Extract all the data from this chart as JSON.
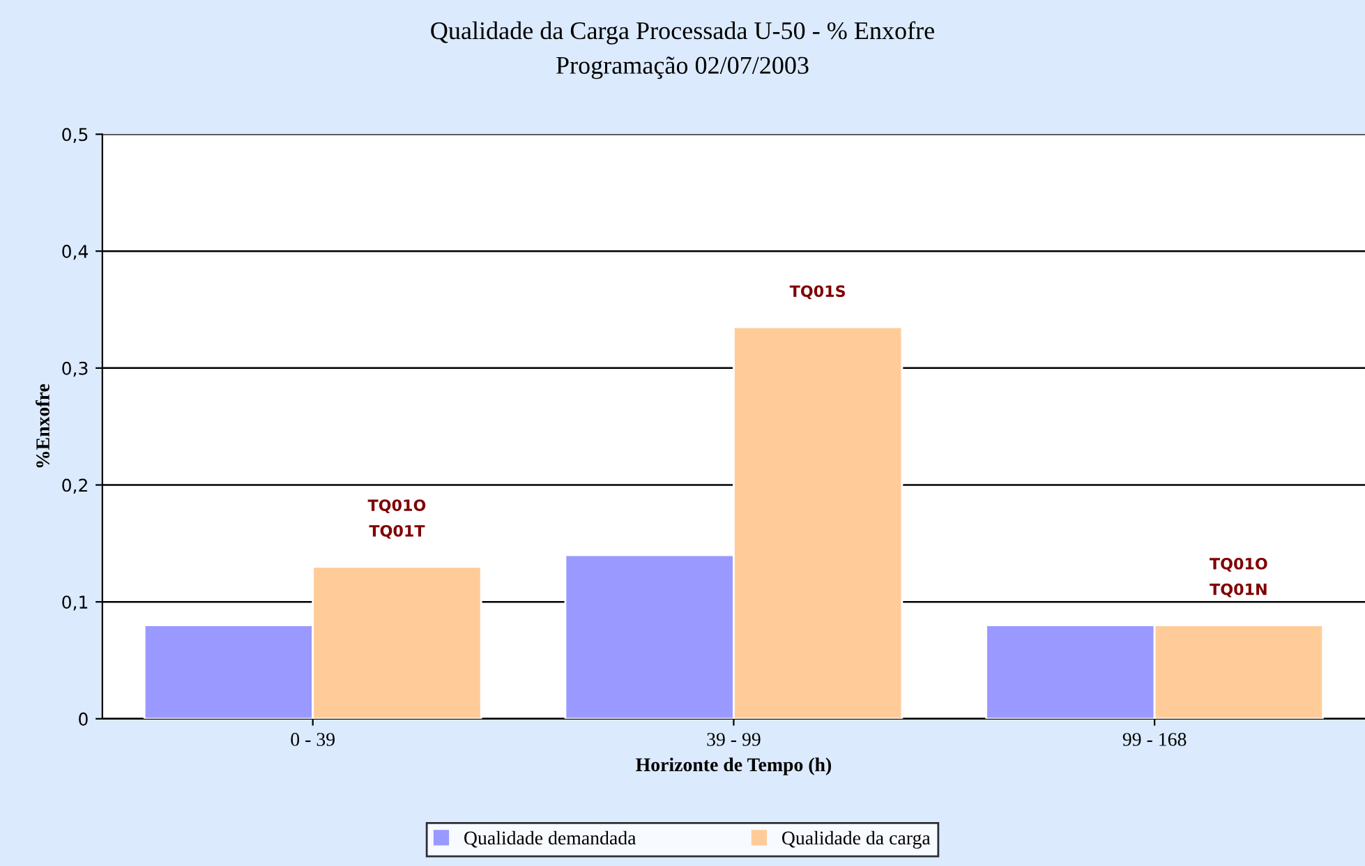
{
  "chart_data": {
    "type": "bar",
    "title": "Qualidade da Carga Processada U-50 - % Enxofre",
    "subtitle": "Programação 02/07/2003",
    "xlabel": "Horizonte de Tempo (h)",
    "ylabel": "%Enxofre",
    "categories": [
      "0 - 39",
      "39 - 99",
      "99 - 168"
    ],
    "series": [
      {
        "name": "Qualidade demandada",
        "color": "#9999ff",
        "values": [
          0.08,
          0.14,
          0.08
        ]
      },
      {
        "name": "Qualidade da carga",
        "color": "#ffcc99",
        "values": [
          0.13,
          0.335,
          0.08
        ]
      }
    ],
    "ylim": [
      0,
      0.5
    ],
    "yticks": [
      {
        "value": 0,
        "label": "0"
      },
      {
        "value": 0.1,
        "label": "0,1"
      },
      {
        "value": 0.2,
        "label": "0,2"
      },
      {
        "value": 0.3,
        "label": "0,3"
      },
      {
        "value": 0.4,
        "label": "0,4"
      },
      {
        "value": 0.5,
        "label": "0,5"
      }
    ],
    "grid": "y",
    "legend": "bottom",
    "annotations": [
      "TQ01O\nTQ01T",
      "TQ01S",
      "TQ01O\nTQ01N"
    ]
  }
}
